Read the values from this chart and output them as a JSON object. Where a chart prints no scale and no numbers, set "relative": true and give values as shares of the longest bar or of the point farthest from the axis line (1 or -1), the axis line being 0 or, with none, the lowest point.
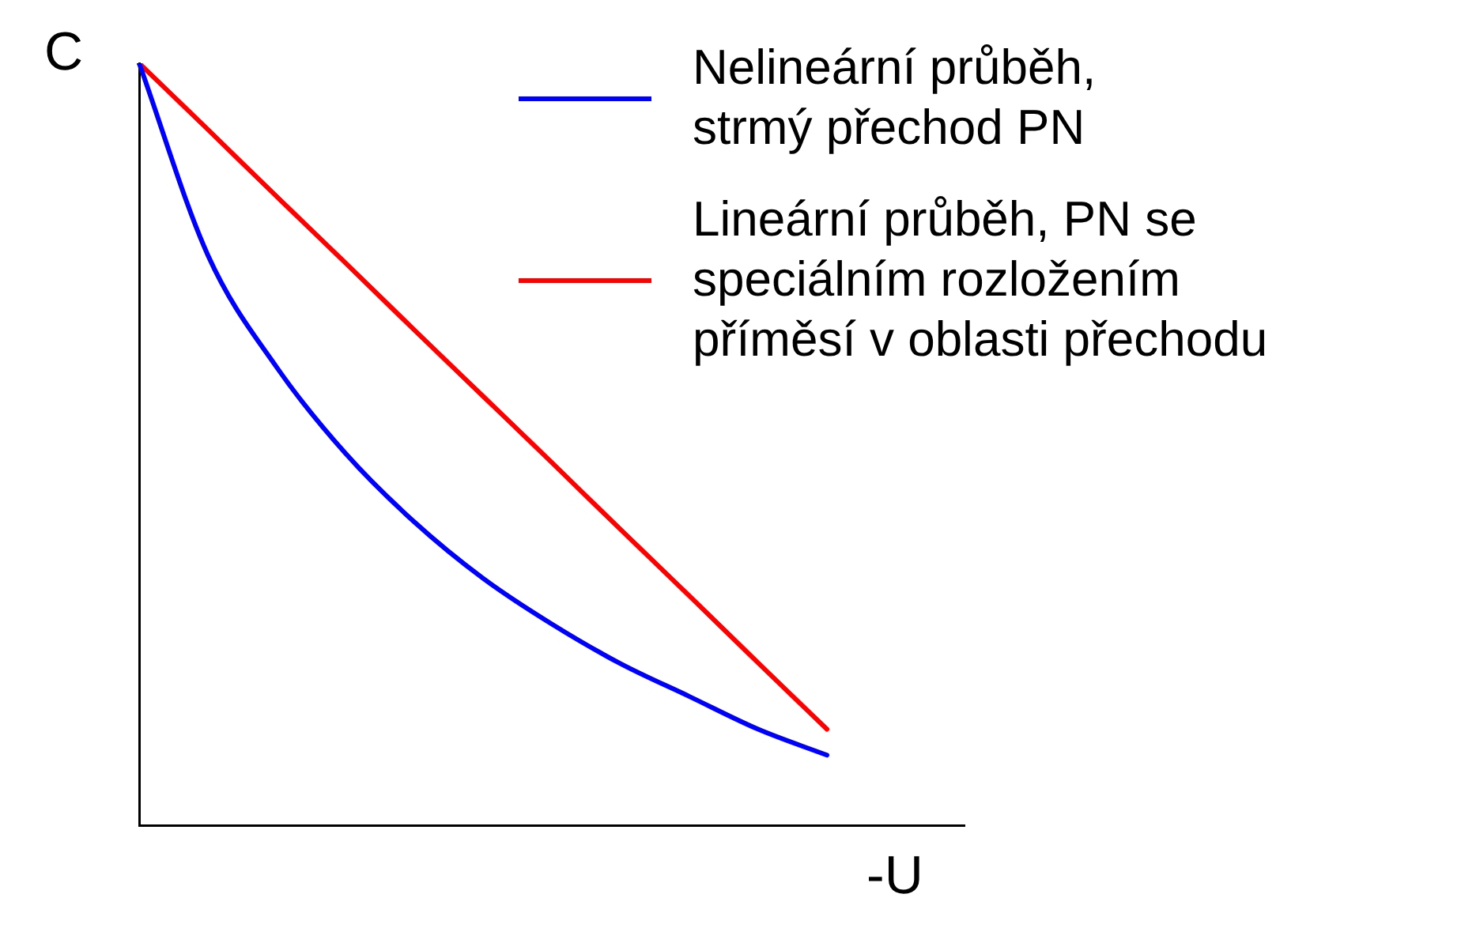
{
  "chart_data": {
    "type": "line",
    "xlabel": "-U",
    "ylabel": "C",
    "relative": true,
    "legend": "top right",
    "marker": "none",
    "categories": [
      null,
      null,
      null,
      null,
      null,
      null,
      null,
      null,
      null,
      null,
      null,
      null,
      null
    ],
    "series": [
      {
        "name": "Nelineární průběh,\nstrmý přechod PN",
        "color": "#0000ff",
        "values": [
          1,
          0.748,
          0.601,
          0.488,
          0.398,
          0.324,
          0.264,
          0.212,
          0.169,
          0.126,
          0.092,
          null,
          null
        ]
      },
      {
        "name": "Lineární průběh, PN se\nspeciálním rozložením\npříměsí v oblasti přechodu",
        "color": "#ff0000",
        "values": [
          1,
          0.913,
          0.825,
          0.738,
          0.65,
          0.563,
          0.476,
          0.388,
          0.301,
          0.213,
          0.126,
          null,
          null
        ]
      }
    ]
  }
}
